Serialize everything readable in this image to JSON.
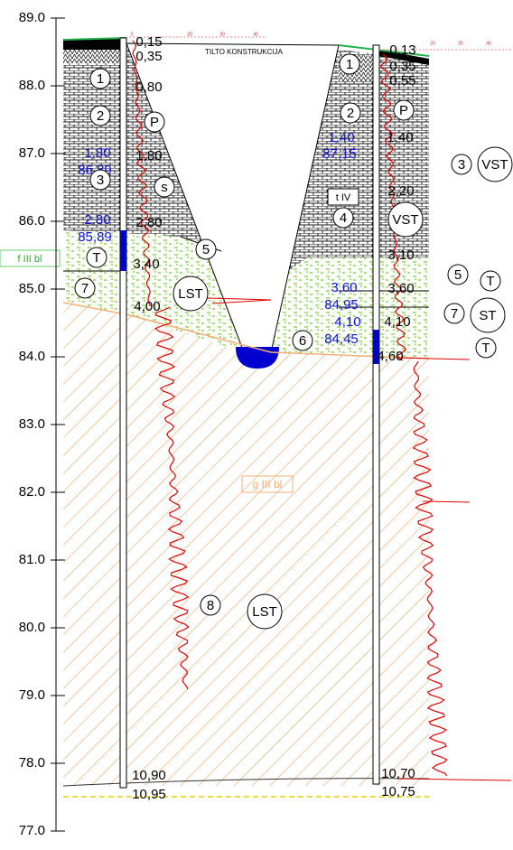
{
  "elevation_axis": {
    "ticks": [
      "89.0",
      "88.0",
      "87.0",
      "86.0",
      "85.0",
      "84.0",
      "83.0",
      "82.0",
      "81.0",
      "80.0",
      "79.0",
      "78.0",
      "77.0"
    ]
  },
  "section": {
    "title": "TILTO KONSTRUKCIJA",
    "trench_label": "t IV",
    "fill_label": "f III bl",
    "glacial_label": "g III bl"
  },
  "left_borehole": {
    "scale": [
      "0",
      "20",
      "30",
      "40"
    ],
    "depths": [
      "0,15",
      "0,35",
      "0,80",
      "1,80",
      "2,80",
      "3,40",
      "4,00",
      "10,90",
      "10,95"
    ],
    "water": [
      "1,80",
      "86,89",
      "2,80",
      "85,89"
    ],
    "layers": [
      "1",
      "2",
      "3",
      "T",
      "7",
      "P",
      "s",
      "5",
      "LST",
      "8",
      "LST"
    ]
  },
  "right_borehole": {
    "scale": [
      "20",
      "30",
      "40"
    ],
    "depths": [
      "0,13",
      "0,35",
      "0,55",
      "1,40",
      "2,20",
      "3,10",
      "3,60",
      "4,10",
      "4,60",
      "10,70",
      "10,75"
    ],
    "water": [
      "1,40",
      "87,15",
      "3,60",
      "84,95",
      "4,10",
      "84,45"
    ],
    "layers": [
      "1",
      "2",
      "P",
      "4",
      "VST",
      "6"
    ]
  },
  "legend_side": {
    "layers": [
      "3",
      "VST",
      "5",
      "T",
      "7",
      "ST",
      "T"
    ]
  }
}
